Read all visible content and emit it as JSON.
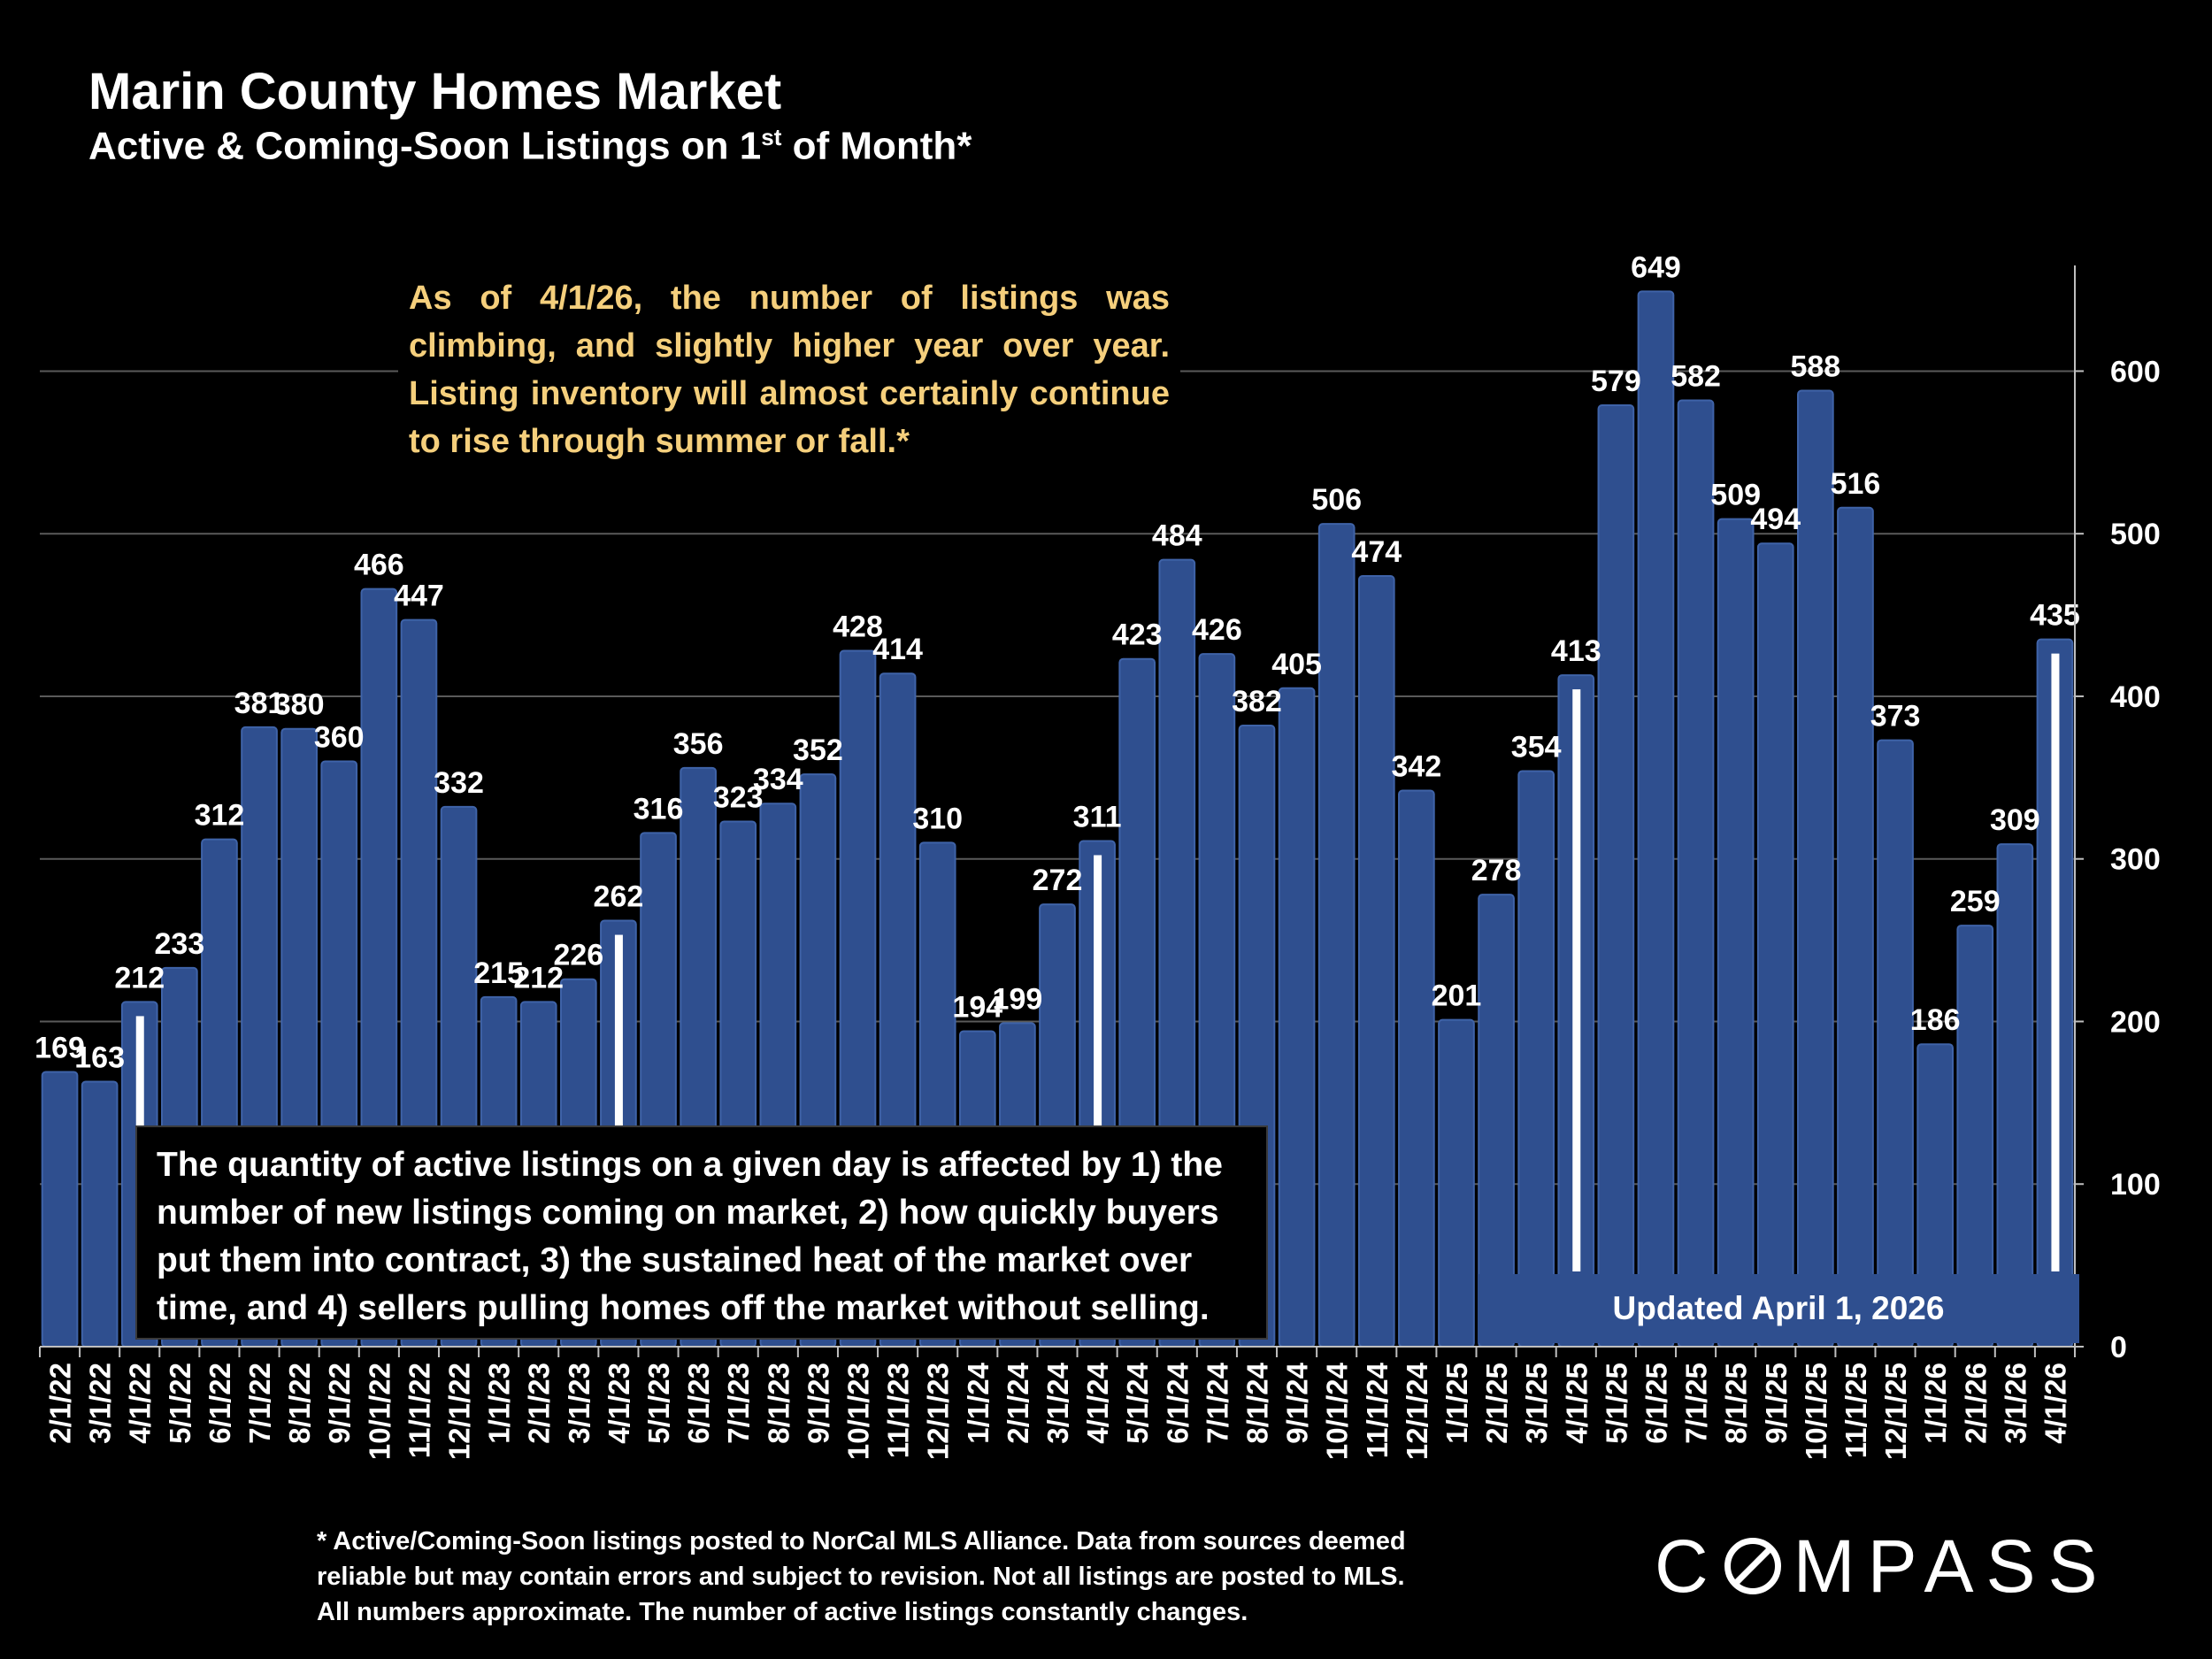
{
  "header": {
    "title": "Marin County Homes Market",
    "subtitle_main": "Active & Coming-Soon Listings on 1",
    "subtitle_sup": "st",
    "subtitle_end": " of Month*"
  },
  "notes": {
    "top": "As of 4/1/26, the number of listings was climbing, and slightly higher year over year. Listing inventory will almost certainly continue to rise through summer or fall.*",
    "bottom": "The quantity of active listings on a given day is affected by 1) the number of new listings coming on market, 2) how quickly buyers put them into contract, 3) the sustained heat of the market over time, and 4) sellers pulling homes off the market without selling.",
    "updated": "Updated April 1, 2026"
  },
  "footnote": {
    "line1": "* Active/Coming-Soon listings posted to NorCal MLS Alliance.  Data from sources deemed",
    "line2": "reliable but may contain errors and subject to revision.  Not all listings are posted to MLS.",
    "line3": "All numbers approximate. The number of active listings constantly changes."
  },
  "logo": {
    "text_before": "C",
    "text_after": "MPASS"
  },
  "colors": {
    "background": "#000000",
    "bar": "#2f4f8f",
    "bar_edge": "#3f63a8",
    "marker": "#ffffff",
    "gridline": "#5a5a5a",
    "note_text": "#f5cf7c",
    "text": "#ffffff"
  },
  "chart_data": {
    "type": "bar",
    "title": "Marin County Homes Market",
    "subtitle": "Active & Coming-Soon Listings on 1st of Month*",
    "xlabel": "",
    "ylabel": "",
    "y_axis_side": "right",
    "ylim": [
      0,
      665
    ],
    "yticks": [
      0,
      100,
      200,
      300,
      400,
      500,
      600
    ],
    "grid": true,
    "categories": [
      "2/1/22",
      "3/1/22",
      "4/1/22",
      "5/1/22",
      "6/1/22",
      "7/1/22",
      "8/1/22",
      "9/1/22",
      "10/1/22",
      "11/1/22",
      "12/1/22",
      "1/1/23",
      "2/1/23",
      "3/1/23",
      "4/1/23",
      "5/1/23",
      "6/1/23",
      "7/1/23",
      "8/1/23",
      "9/1/23",
      "10/1/23",
      "11/1/23",
      "12/1/23",
      "1/1/24",
      "2/1/24",
      "3/1/24",
      "4/1/24",
      "5/1/24",
      "6/1/24",
      "7/1/24",
      "8/1/24",
      "9/1/24",
      "10/1/24",
      "11/1/24",
      "12/1/24",
      "1/1/25",
      "2/1/25",
      "3/1/25",
      "4/1/25",
      "5/1/25",
      "6/1/25",
      "7/1/25",
      "8/1/25",
      "9/1/25",
      "10/1/25",
      "11/1/25",
      "12/1/25",
      "1/1/26",
      "2/1/26",
      "3/1/26",
      "4/1/26"
    ],
    "values": [
      169,
      163,
      212,
      233,
      312,
      381,
      380,
      360,
      466,
      447,
      332,
      215,
      212,
      226,
      262,
      316,
      356,
      323,
      334,
      352,
      428,
      414,
      310,
      194,
      199,
      272,
      311,
      423,
      484,
      426,
      382,
      405,
      506,
      474,
      342,
      201,
      278,
      354,
      413,
      579,
      649,
      582,
      509,
      494,
      588,
      516,
      373,
      186,
      259,
      309,
      435
    ],
    "highlighted_categories": [
      "4/1/22",
      "4/1/23",
      "4/1/24",
      "4/1/25",
      "4/1/26"
    ]
  }
}
